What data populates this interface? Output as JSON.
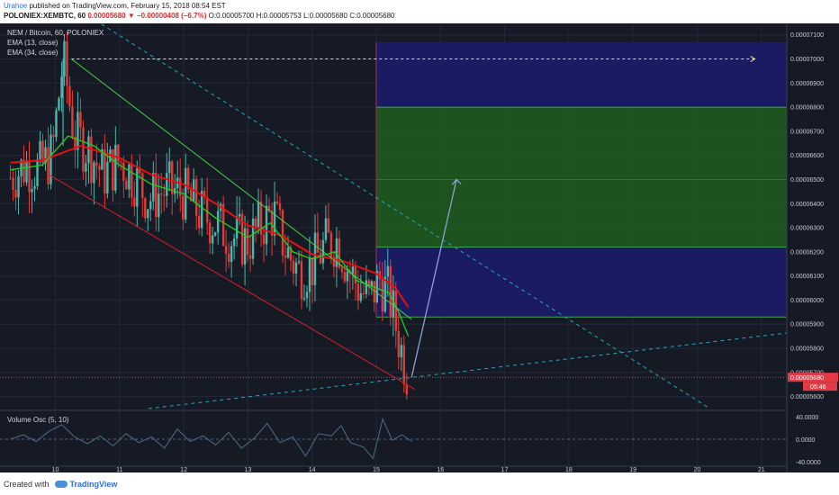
{
  "header": {
    "author": "Urahoe",
    "published_text": "published on TradingView.com, February 15, 2018 08:54 EST",
    "symbol": "POLONIEX:XEMBTC, 60",
    "last": "0.00005680",
    "change": "▼ −0.00000408 (−6.7%)",
    "ohlc": "O:0.00005700 H:0.00005753 L:0.00005680 C:0.00005680"
  },
  "legend": {
    "title": "NEM / Bitcoin, 60, POLONIEX",
    "ema13": "EMA (13, close)",
    "ema34": "EMA (34, close)",
    "vol_osc": "Volume Osc (5, 10)"
  },
  "footer": {
    "created_with": "Created with",
    "brand": "TradingView"
  },
  "colors": {
    "background": "#161a25",
    "candle_up": "#4db6ac",
    "candle_down": "#e53935",
    "ema13": "#1fd11f",
    "ema34": "#e81010",
    "trend_green": "#47d147",
    "channel_red": "#d61e2a",
    "dashed_cyan": "#26a8b8",
    "zone_blue": "#1c1c6c",
    "zone_green": "#1e5a1e",
    "oscillator": "#4a6e86"
  },
  "chart_data": {
    "type": "candlestick",
    "symbol": "NEM / Bitcoin",
    "interval": "60",
    "exchange": "POLONIEX",
    "x_ticks": [
      "10",
      "11",
      "12",
      "13",
      "14",
      "15",
      "16",
      "17",
      "18",
      "19",
      "20",
      "21"
    ],
    "price_ticks": [
      "0.00007100",
      "0.00007000",
      "0.00006900",
      "0.00006800",
      "0.00006700",
      "0.00006600",
      "0.00006500",
      "0.00006400",
      "0.00006300",
      "0.00006200",
      "0.00006100",
      "0.00006000",
      "0.00005900",
      "0.00005800",
      "0.00005700",
      "0.00005600"
    ],
    "last_price_label": "0.00005680",
    "countdown_label": "05:46",
    "ylim": [
      5.55e-05,
      7.14e-05
    ],
    "xlim_days": [
      9.25,
      21.6
    ],
    "osc_ticks": [
      "40.0000",
      "0.0000",
      "-40.0000"
    ],
    "osc_ylim": [
      -48,
      48
    ],
    "price_path": [
      [
        9.3,
        6.51e-05
      ],
      [
        9.55,
        6.56e-05
      ],
      [
        9.75,
        6.54e-05
      ],
      [
        9.95,
        6.6e-05
      ],
      [
        10.12,
        7e-05
      ],
      [
        10.3,
        6.68e-05
      ],
      [
        10.5,
        6.63e-05
      ],
      [
        10.75,
        6.52e-05
      ],
      [
        11.0,
        6.58e-05
      ],
      [
        11.25,
        6.5e-05
      ],
      [
        11.45,
        6.42e-05
      ],
      [
        11.75,
        6.46e-05
      ],
      [
        12.0,
        6.44e-05
      ],
      [
        12.25,
        6.36e-05
      ],
      [
        12.5,
        6.32e-05
      ],
      [
        12.75,
        6.26e-05
      ],
      [
        13.0,
        6.24e-05
      ],
      [
        13.2,
        6.31e-05
      ],
      [
        13.4,
        6.36e-05
      ],
      [
        13.6,
        6.2e-05
      ],
      [
        13.8,
        6.12e-05
      ],
      [
        14.0,
        6.14e-05
      ],
      [
        14.2,
        6.23e-05
      ],
      [
        14.4,
        6.25e-05
      ],
      [
        14.55,
        6.14e-05
      ],
      [
        14.75,
        6.04e-05
      ],
      [
        14.9,
        6e-05
      ],
      [
        15.05,
        6.09e-05
      ],
      [
        15.2,
        6.02e-05
      ],
      [
        15.3,
        5.9e-05
      ],
      [
        15.4,
        5.78e-05
      ],
      [
        15.5,
        5.68e-05
      ]
    ],
    "ema13": [
      [
        9.3,
        6.54e-05
      ],
      [
        9.8,
        6.56e-05
      ],
      [
        10.2,
        6.68e-05
      ],
      [
        10.6,
        6.64e-05
      ],
      [
        11.0,
        6.56e-05
      ],
      [
        11.5,
        6.48e-05
      ],
      [
        12.0,
        6.44e-05
      ],
      [
        12.5,
        6.34e-05
      ],
      [
        13.0,
        6.26e-05
      ],
      [
        13.35,
        6.32e-05
      ],
      [
        13.7,
        6.2e-05
      ],
      [
        14.0,
        6.17e-05
      ],
      [
        14.35,
        6.2e-05
      ],
      [
        14.7,
        6.08e-05
      ],
      [
        15.0,
        6.05e-05
      ],
      [
        15.2,
        6.03e-05
      ],
      [
        15.35,
        5.95e-05
      ],
      [
        15.5,
        5.85e-05
      ]
    ],
    "ema34": [
      [
        9.3,
        6.57e-05
      ],
      [
        9.8,
        6.58e-05
      ],
      [
        10.4,
        6.64e-05
      ],
      [
        11.0,
        6.59e-05
      ],
      [
        11.5,
        6.52e-05
      ],
      [
        12.0,
        6.48e-05
      ],
      [
        12.5,
        6.4e-05
      ],
      [
        13.0,
        6.31e-05
      ],
      [
        13.5,
        6.27e-05
      ],
      [
        14.0,
        6.19e-05
      ],
      [
        14.5,
        6.16e-05
      ],
      [
        15.0,
        6.11e-05
      ],
      [
        15.3,
        6.05e-05
      ],
      [
        15.5,
        5.97e-05
      ]
    ],
    "drawings": {
      "peak_level": {
        "price": 7e-05,
        "from_day": 10.25,
        "to_day": 20.9
      },
      "green_trendline": {
        "from": [
          10.25,
          7e-05
        ],
        "to": [
          15.55,
          5.92e-05
        ]
      },
      "red_channel": {
        "from": [
          9.9,
          6.52e-05
        ],
        "to": [
          15.6,
          5.63e-05
        ]
      },
      "dashed_downtrend": {
        "from": [
          10.15,
          7.24e-05
        ],
        "to": [
          20.2,
          5.55e-05
        ]
      },
      "dashed_uptrend": {
        "from": [
          11.45,
          5.55e-05
        ],
        "to": [
          21.6,
          5.87e-05
        ]
      },
      "projection_arrow": {
        "from": [
          15.55,
          5.68e-05
        ],
        "to": [
          16.25,
          6.5e-05
        ]
      },
      "zone_upper_blue": [
        6.8e-05,
        7.07e-05
      ],
      "zone_green": [
        6.22e-05,
        6.8e-05
      ],
      "zone_lower_blue": [
        5.93e-05,
        6.22e-05
      ],
      "zone_start_day": 15.0,
      "target_line": 6.5e-05,
      "last_line": 5.68e-05
    },
    "volume_osc": [
      [
        9.3,
        0
      ],
      [
        9.5,
        8
      ],
      [
        9.7,
        -4
      ],
      [
        9.9,
        14
      ],
      [
        10.1,
        26
      ],
      [
        10.3,
        4
      ],
      [
        10.5,
        -8
      ],
      [
        10.7,
        6
      ],
      [
        10.9,
        -12
      ],
      [
        11.1,
        10
      ],
      [
        11.3,
        -6
      ],
      [
        11.5,
        4
      ],
      [
        11.7,
        -16
      ],
      [
        11.9,
        18
      ],
      [
        12.1,
        -4
      ],
      [
        12.3,
        6
      ],
      [
        12.5,
        -10
      ],
      [
        12.7,
        12
      ],
      [
        12.9,
        -16
      ],
      [
        13.1,
        2
      ],
      [
        13.3,
        28
      ],
      [
        13.5,
        -6
      ],
      [
        13.7,
        4
      ],
      [
        13.9,
        -30
      ],
      [
        14.1,
        10
      ],
      [
        14.3,
        6
      ],
      [
        14.45,
        24
      ],
      [
        14.6,
        -6
      ],
      [
        14.8,
        -14
      ],
      [
        14.95,
        -34
      ],
      [
        15.1,
        36
      ],
      [
        15.25,
        -2
      ],
      [
        15.4,
        8
      ],
      [
        15.55,
        -4
      ]
    ]
  }
}
